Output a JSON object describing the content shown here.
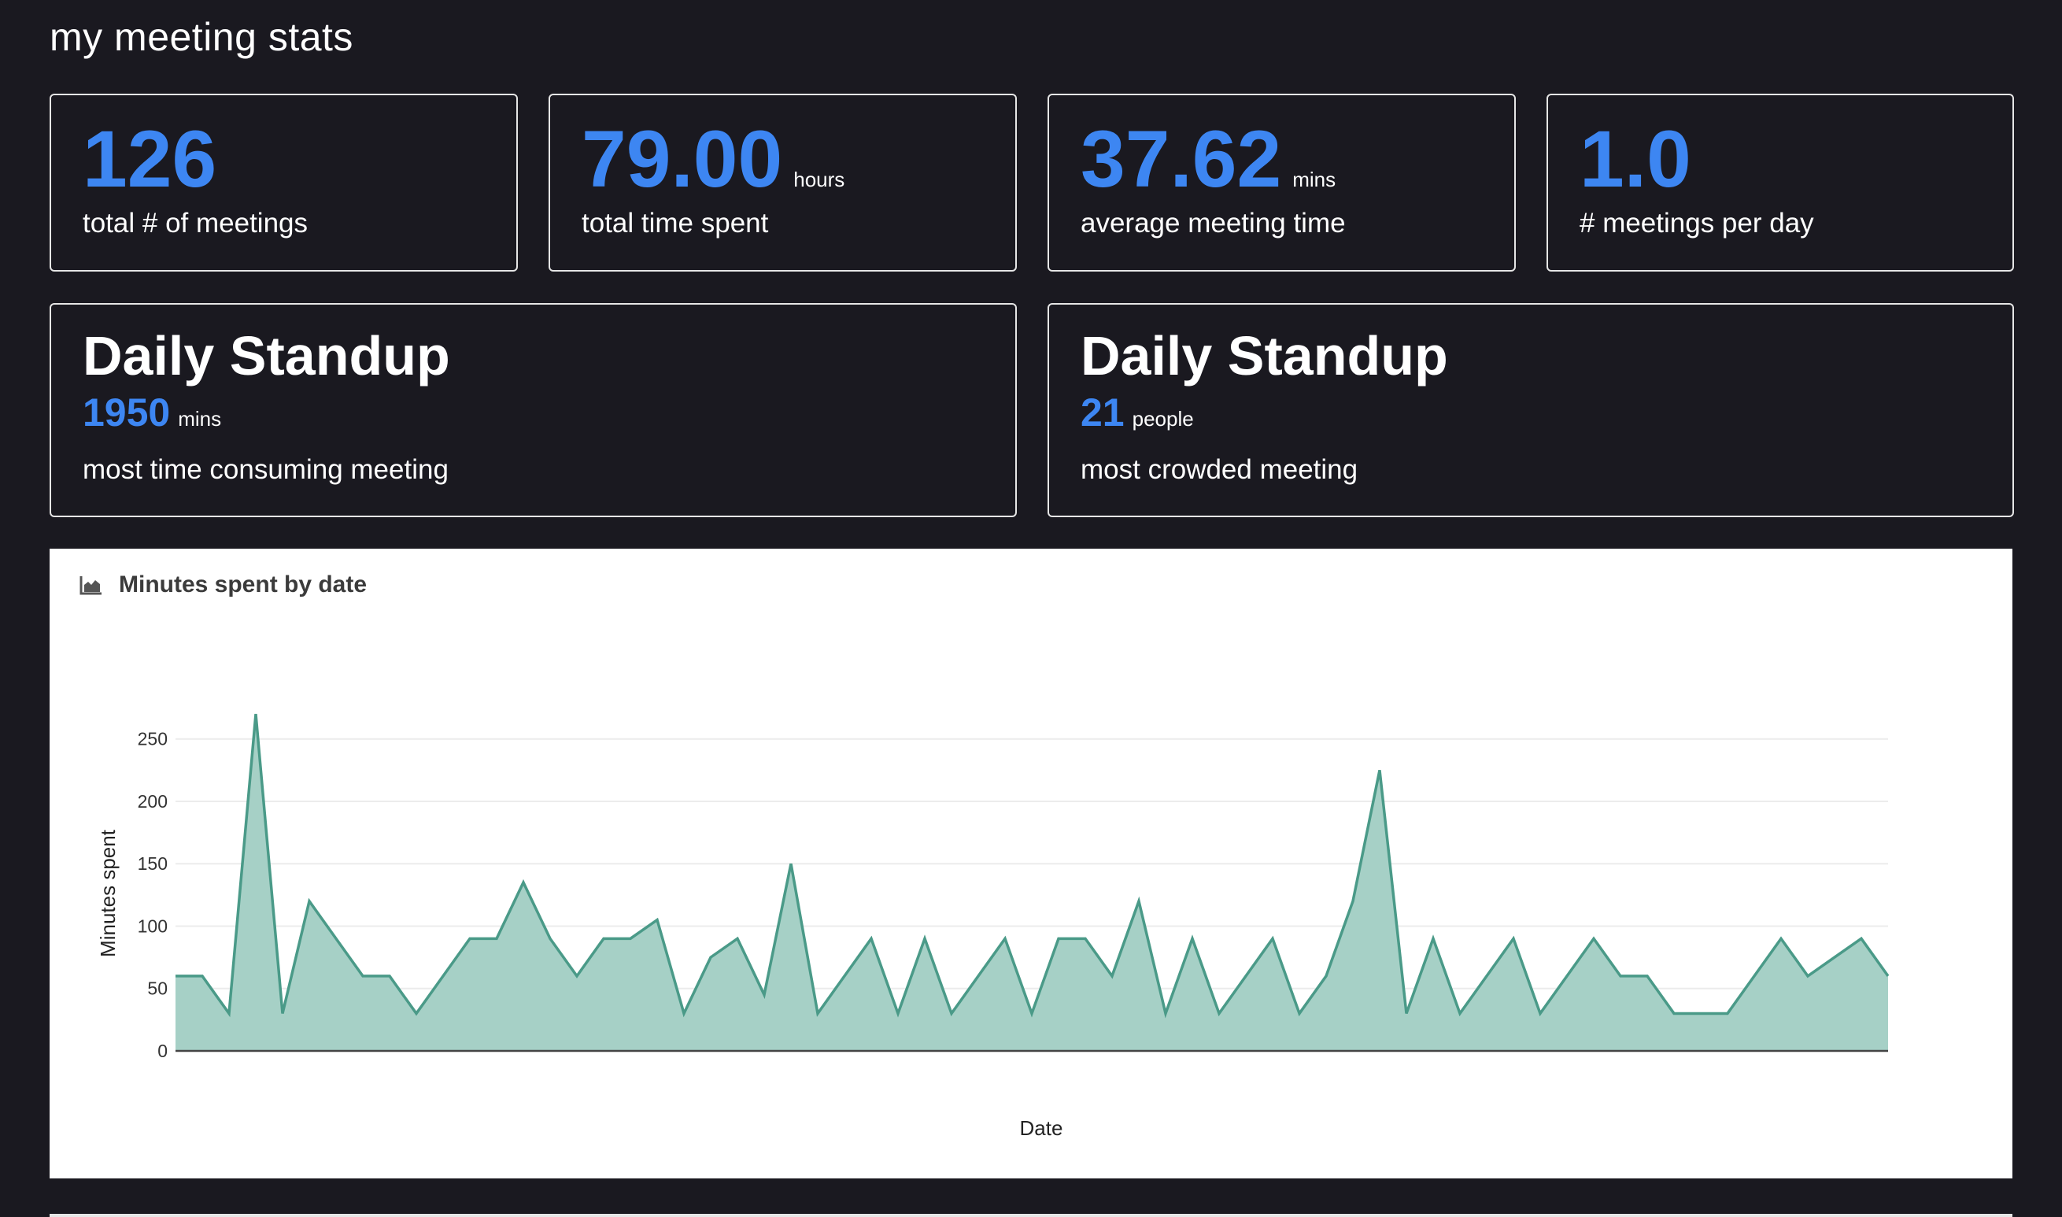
{
  "page": {
    "title": "my meeting stats"
  },
  "stats": [
    {
      "value": "126",
      "unit": "",
      "label": "total # of meetings"
    },
    {
      "value": "79.00",
      "unit": "hours",
      "label": "total time spent"
    },
    {
      "value": "37.62",
      "unit": "mins",
      "label": "average meeting time"
    },
    {
      "value": "1.0",
      "unit": "",
      "label": "# meetings per day"
    }
  ],
  "highlights": [
    {
      "name": "Daily Standup",
      "value": "1950",
      "unit": "mins",
      "label": "most time consuming meeting"
    },
    {
      "name": "Daily Standup",
      "value": "21",
      "unit": "people",
      "label": "most crowded meeting"
    }
  ],
  "chart_panel": {
    "title": "Minutes spent by date",
    "icon": "area-chart-icon"
  },
  "colors": {
    "accent": "#3d86f2",
    "background": "#1a1920",
    "line": "#4a9a88",
    "fill": "#a6d0c6"
  },
  "chart_data": {
    "type": "area",
    "title": "Minutes spent by date",
    "xlabel": "Date",
    "ylabel": "Minutes spent",
    "ylim": [
      0,
      270
    ],
    "yticks": [
      0,
      50,
      100,
      150,
      200,
      250
    ],
    "grid": true,
    "legend": "none",
    "series": [
      {
        "values": [
          60,
          60,
          30,
          270,
          30,
          120,
          90,
          60,
          60,
          30,
          60,
          90,
          90,
          135,
          90,
          60,
          90,
          90,
          105,
          30,
          75,
          90,
          45,
          150,
          30,
          60,
          90,
          30,
          90,
          30,
          60,
          90,
          30,
          90,
          90,
          60,
          120,
          30,
          90,
          30,
          60,
          90,
          30,
          60,
          120,
          225,
          30,
          90,
          30,
          60,
          90,
          30,
          60,
          90,
          60,
          60,
          30,
          30,
          30,
          60,
          90,
          60,
          75,
          90,
          60
        ]
      }
    ]
  }
}
